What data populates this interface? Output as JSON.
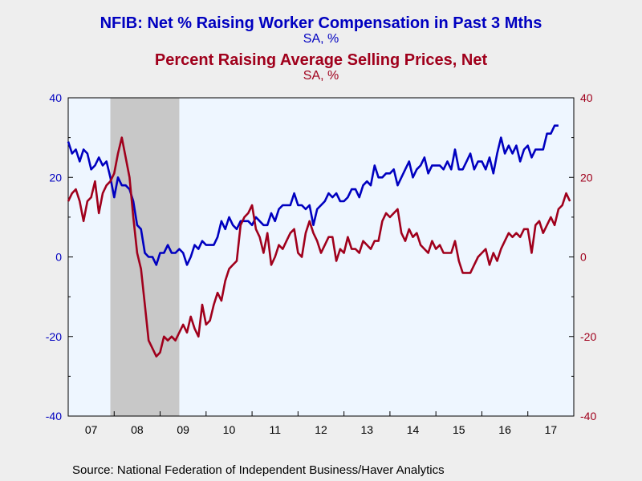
{
  "titles": {
    "title1": "NFIB: Net % Raising Worker Compensation in Past 3 Mths",
    "subtitle1": "SA, %",
    "title2": "Percent Raising Average Selling Prices, Net",
    "subtitle2": "SA, %"
  },
  "source": "Source:  National Federation of Independent Business/Haver Analytics",
  "colors": {
    "series1": "#0000c0",
    "series2": "#a0001c",
    "plot_bg": "#eef6ff",
    "recession": "#c8c8c8",
    "page_bg": "#eeeeee"
  },
  "chart_data": {
    "type": "line",
    "x_ticks": [
      "07",
      "08",
      "09",
      "10",
      "11",
      "12",
      "13",
      "14",
      "15",
      "16",
      "17"
    ],
    "y_left_ticks": [
      "40",
      "20",
      "0",
      "-20",
      "-40"
    ],
    "y_right_ticks": [
      "40",
      "20",
      "0",
      "-20",
      "-40"
    ],
    "ylim": [
      -40,
      40
    ],
    "xlim": [
      2007.0,
      2018.0
    ],
    "recession": [
      2007.917,
      2009.417
    ],
    "grid": false,
    "series": [
      {
        "name": "NFIB: Net % Raising Worker Compensation in Past 3 Mths",
        "x_start": 2007.0,
        "step": 0.0833333,
        "values": [
          29,
          26,
          27,
          24,
          27,
          26,
          22,
          23,
          25,
          23,
          24,
          20,
          15,
          20,
          18,
          18,
          17,
          14,
          8,
          7,
          1,
          0,
          0,
          -2,
          1,
          1,
          3,
          1,
          1,
          2,
          1,
          -2,
          0,
          3,
          2,
          4,
          3,
          3,
          3,
          5,
          9,
          7,
          10,
          8,
          7,
          9,
          9,
          9,
          8,
          10,
          9,
          8,
          8,
          11,
          9,
          12,
          13,
          13,
          13,
          16,
          13,
          13,
          12,
          13,
          8,
          12,
          13,
          14,
          16,
          15,
          16,
          14,
          14,
          15,
          17,
          17,
          15,
          18,
          19,
          18,
          23,
          20,
          20,
          21,
          21,
          22,
          18,
          20,
          22,
          24,
          20,
          22,
          23,
          25,
          21,
          23,
          23,
          23,
          22,
          24,
          22,
          27,
          22,
          22,
          24,
          26,
          22,
          24,
          24,
          22,
          25,
          21,
          26,
          30,
          26,
          28,
          26,
          28,
          24,
          27,
          28,
          25,
          27,
          27,
          27,
          31,
          31,
          33,
          33
        ]
      },
      {
        "name": "Percent Raising Average Selling Prices, Net",
        "x_start": 2007.0,
        "step": 0.0833333,
        "values": [
          14,
          16,
          17,
          14,
          9,
          14,
          15,
          19,
          11,
          16,
          18,
          19,
          21,
          26,
          30,
          25,
          20,
          10,
          1,
          -3,
          -12,
          -21,
          -23,
          -25,
          -24,
          -20,
          -21,
          -20,
          -21,
          -19,
          -17,
          -19,
          -15,
          -18,
          -20,
          -12,
          -17,
          -16,
          -12,
          -9,
          -11,
          -6,
          -3,
          -2,
          -1,
          8,
          10,
          11,
          13,
          7,
          5,
          1,
          6,
          -2,
          0,
          3,
          2,
          4,
          6,
          7,
          1,
          0,
          6,
          9,
          6,
          4,
          1,
          3,
          5,
          5,
          -1,
          2,
          1,
          5,
          2,
          2,
          1,
          4,
          3,
          2,
          4,
          4,
          9,
          11,
          10,
          11,
          12,
          6,
          4,
          7,
          5,
          6,
          3,
          2,
          1,
          4,
          2,
          3,
          1,
          1,
          1,
          4,
          -1,
          -4,
          -4,
          -4,
          -2,
          0,
          1,
          2,
          -2,
          1,
          -1,
          2,
          4,
          6,
          5,
          6,
          5,
          7,
          7,
          1,
          8,
          9,
          6,
          8,
          10,
          8,
          12,
          13,
          16,
          14
        ]
      }
    ]
  }
}
